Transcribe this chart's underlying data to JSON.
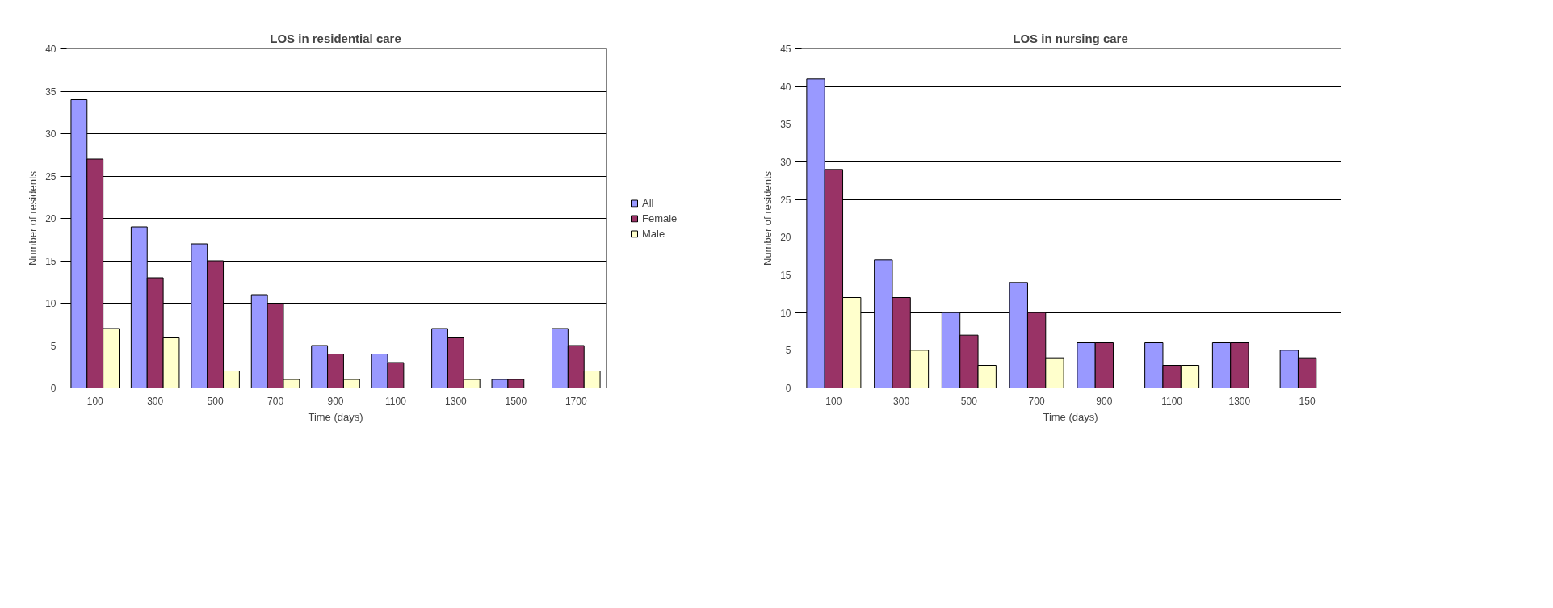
{
  "chart_data": [
    {
      "type": "bar",
      "title": "LOS in residential care",
      "xlabel": "Time (days)",
      "ylabel": "Number of residents",
      "categories": [
        "100",
        "300",
        "500",
        "700",
        "900",
        "1100",
        "1300",
        "1500",
        "1700"
      ],
      "ylim": [
        0,
        40
      ],
      "yticks": [
        0,
        5,
        10,
        15,
        20,
        25,
        30,
        35,
        40
      ],
      "grid": "y",
      "legend": "right",
      "series": [
        {
          "name": "All",
          "color": "#9999ff",
          "values": [
            34,
            19,
            17,
            11,
            5,
            4,
            7,
            1,
            7
          ]
        },
        {
          "name": "Female",
          "color": "#993366",
          "values": [
            27,
            13,
            15,
            10,
            4,
            3,
            6,
            1,
            5
          ]
        },
        {
          "name": "Male",
          "color": "#ffffcc",
          "values": [
            7,
            6,
            2,
            1,
            1,
            null,
            1,
            null,
            2
          ]
        }
      ]
    },
    {
      "type": "bar",
      "title": "LOS in nursing care",
      "xlabel": "Time (days)",
      "ylabel": "Number of residents",
      "categories": [
        "100",
        "300",
        "500",
        "700",
        "900",
        "1100",
        "1300",
        "150"
      ],
      "ylim": [
        0,
        45
      ],
      "yticks": [
        0,
        5,
        10,
        15,
        20,
        25,
        30,
        35,
        40,
        45
      ],
      "grid": "y",
      "legend": false,
      "series": [
        {
          "color": "#9999ff",
          "values": [
            41,
            17,
            10,
            14,
            6,
            6,
            6,
            5
          ]
        },
        {
          "color": "#993366",
          "values": [
            29,
            12,
            7,
            10,
            6,
            3,
            6,
            4
          ]
        },
        {
          "color": "#ffffcc",
          "values": [
            12,
            5,
            3,
            4,
            null,
            3,
            null,
            null
          ]
        }
      ]
    }
  ]
}
